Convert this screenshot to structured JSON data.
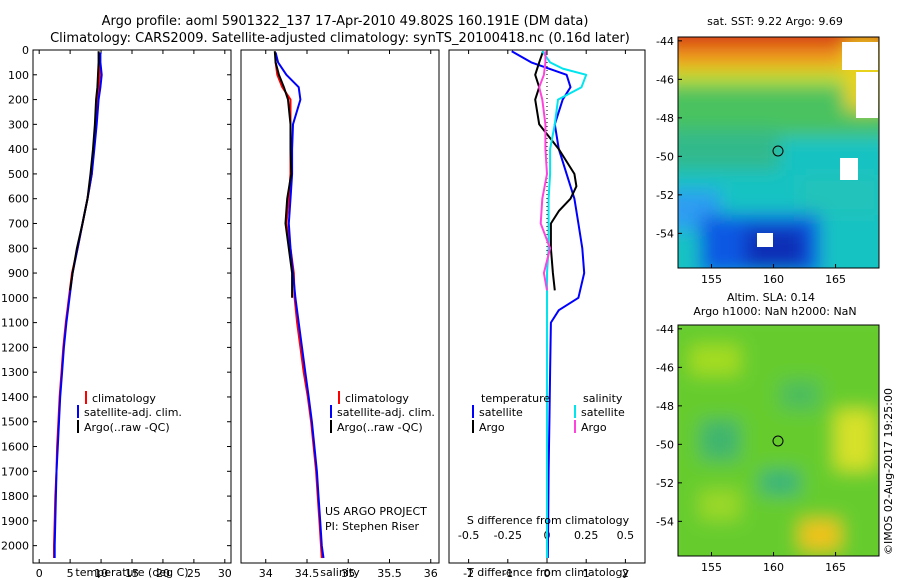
{
  "header": {
    "title_line1": "Argo profile: aoml 5901322_137 17-Apr-2010 49.802S 160.191E (DM data)",
    "title_line2": "Climatology: CARS2009. Satellite-adjusted climatology: synTS_20100418.nc (0.16d later)"
  },
  "colors": {
    "climatology": "#ff0000",
    "satellite": "#0000ff",
    "argo": "#000000",
    "s_satellite": "#00e5ee",
    "s_argo": "#ff44dd"
  },
  "chart_data": [
    {
      "type": "line",
      "name": "temperature-profile",
      "xlabel": "temperature (deg C)",
      "ylabel": "",
      "xlim": [
        -1,
        31
      ],
      "ylim": [
        2070,
        0
      ],
      "xticks": [
        0,
        5,
        10,
        15,
        20,
        25,
        30
      ],
      "yticks": [
        0,
        100,
        200,
        300,
        400,
        500,
        600,
        700,
        800,
        900,
        1000,
        1100,
        1200,
        1300,
        1400,
        1500,
        1600,
        1700,
        1800,
        1900,
        2000
      ],
      "legend": [
        "climatology",
        "satellite-adj. clim.",
        "Argo(..raw -QC)"
      ],
      "legend_position": "center-right",
      "series": [
        {
          "name": "climatology",
          "color": "#ff0000",
          "points": [
            [
              9.7,
              10
            ],
            [
              9.8,
              50
            ],
            [
              9.8,
              100
            ],
            [
              9.6,
              150
            ],
            [
              9.5,
              200
            ],
            [
              9.2,
              300
            ],
            [
              8.8,
              400
            ],
            [
              8.5,
              500
            ],
            [
              7.8,
              600
            ],
            [
              7.0,
              700
            ],
            [
              6.2,
              800
            ],
            [
              5.3,
              900
            ],
            [
              4.8,
              1000
            ],
            [
              4.3,
              1100
            ],
            [
              3.9,
              1200
            ],
            [
              3.6,
              1300
            ],
            [
              3.3,
              1400
            ],
            [
              3.1,
              1500
            ],
            [
              2.9,
              1600
            ],
            [
              2.8,
              1700
            ],
            [
              2.6,
              1800
            ],
            [
              2.5,
              1900
            ],
            [
              2.4,
              2000
            ],
            [
              2.4,
              2050
            ]
          ]
        },
        {
          "name": "satellite-adj. clim.",
          "color": "#0000ff",
          "points": [
            [
              9.9,
              10
            ],
            [
              9.9,
              50
            ],
            [
              10.1,
              100
            ],
            [
              9.9,
              150
            ],
            [
              9.6,
              200
            ],
            [
              9.3,
              300
            ],
            [
              8.9,
              400
            ],
            [
              8.5,
              500
            ],
            [
              7.8,
              600
            ],
            [
              7.0,
              700
            ],
            [
              6.2,
              800
            ],
            [
              5.4,
              900
            ],
            [
              4.9,
              1000
            ],
            [
              4.4,
              1100
            ],
            [
              4.0,
              1200
            ],
            [
              3.7,
              1300
            ],
            [
              3.4,
              1400
            ],
            [
              3.2,
              1500
            ],
            [
              3.0,
              1600
            ],
            [
              2.8,
              1700
            ],
            [
              2.7,
              1800
            ],
            [
              2.6,
              1900
            ],
            [
              2.5,
              2000
            ],
            [
              2.5,
              2050
            ]
          ]
        },
        {
          "name": "Argo(..raw -QC)",
          "color": "#000000",
          "points": [
            [
              9.6,
              5
            ],
            [
              9.6,
              50
            ],
            [
              9.5,
              100
            ],
            [
              9.4,
              150
            ],
            [
              9.2,
              200
            ],
            [
              9.0,
              300
            ],
            [
              8.7,
              400
            ],
            [
              8.3,
              500
            ],
            [
              7.8,
              600
            ],
            [
              7.0,
              700
            ],
            [
              6.1,
              800
            ],
            [
              5.4,
              900
            ],
            [
              5.0,
              970
            ]
          ]
        }
      ]
    },
    {
      "type": "line",
      "name": "salinity-profile",
      "xlabel": "salinity",
      "ylabel": "",
      "xlim": [
        33.7,
        36.1
      ],
      "ylim": [
        2070,
        0
      ],
      "xticks": [
        34,
        34.5,
        35,
        35.5,
        36
      ],
      "xtick_labels": [
        "34",
        "34.5",
        "35",
        "35.5",
        "36"
      ],
      "legend": [
        "climatology",
        "satellite-adj. clim.",
        "Argo(..raw -QC)"
      ],
      "legend_position": "center-right",
      "annotation": [
        "US ARGO PROJECT",
        "PI: Stephen Riser"
      ],
      "series": [
        {
          "name": "climatology",
          "color": "#ff0000",
          "points": [
            [
              34.12,
              10
            ],
            [
              34.12,
              50
            ],
            [
              34.14,
              100
            ],
            [
              34.2,
              150
            ],
            [
              34.3,
              200
            ],
            [
              34.3,
              300
            ],
            [
              34.3,
              400
            ],
            [
              34.3,
              500
            ],
            [
              34.28,
              600
            ],
            [
              34.25,
              700
            ],
            [
              34.3,
              800
            ],
            [
              34.34,
              900
            ],
            [
              34.35,
              1000
            ],
            [
              34.38,
              1100
            ],
            [
              34.42,
              1200
            ],
            [
              34.46,
              1300
            ],
            [
              34.51,
              1400
            ],
            [
              34.55,
              1500
            ],
            [
              34.58,
              1600
            ],
            [
              34.61,
              1700
            ],
            [
              34.63,
              1800
            ],
            [
              34.65,
              1900
            ],
            [
              34.67,
              2000
            ],
            [
              34.68,
              2050
            ]
          ]
        },
        {
          "name": "satellite-adj. clim.",
          "color": "#0000ff",
          "points": [
            [
              34.12,
              10
            ],
            [
              34.15,
              50
            ],
            [
              34.25,
              100
            ],
            [
              34.4,
              150
            ],
            [
              34.42,
              200
            ],
            [
              34.33,
              300
            ],
            [
              34.32,
              400
            ],
            [
              34.32,
              500
            ],
            [
              34.3,
              600
            ],
            [
              34.28,
              700
            ],
            [
              34.3,
              800
            ],
            [
              34.33,
              900
            ],
            [
              34.36,
              1000
            ],
            [
              34.4,
              1100
            ],
            [
              34.44,
              1200
            ],
            [
              34.48,
              1300
            ],
            [
              34.52,
              1400
            ],
            [
              34.56,
              1500
            ],
            [
              34.59,
              1600
            ],
            [
              34.62,
              1700
            ],
            [
              34.64,
              1800
            ],
            [
              34.66,
              1900
            ],
            [
              34.68,
              2000
            ],
            [
              34.7,
              2050
            ]
          ]
        },
        {
          "name": "Argo(..raw -QC)",
          "color": "#000000",
          "points": [
            [
              34.11,
              5
            ],
            [
              34.12,
              50
            ],
            [
              34.16,
              100
            ],
            [
              34.22,
              150
            ],
            [
              34.27,
              200
            ],
            [
              34.3,
              300
            ],
            [
              34.3,
              400
            ],
            [
              34.31,
              500
            ],
            [
              34.26,
              600
            ],
            [
              34.24,
              700
            ],
            [
              34.28,
              800
            ],
            [
              34.32,
              900
            ],
            [
              34.32,
              1000
            ]
          ]
        }
      ]
    },
    {
      "type": "line",
      "name": "difference-profile",
      "xlabel": "T difference from climatology",
      "xlabel_top": "S difference from climatology",
      "ylabel": "",
      "xlim": [
        -2.5,
        2.5
      ],
      "ylim": [
        2070,
        0
      ],
      "xticks": [
        -2,
        -1,
        0,
        1,
        2
      ],
      "s_xticks": [
        -0.5,
        -0.25,
        0,
        0.25,
        0.5
      ],
      "s_xtick_labels": [
        "-0.5",
        "-0.25",
        "0",
        "0.25",
        "0.5"
      ],
      "legend": {
        "temperature_heading": "temperature",
        "salinity_heading": "salinity",
        "t_satellite": "satellite",
        "t_argo": "Argo",
        "s_satellite": "satellite",
        "s_argo": "Argo"
      },
      "legend_position": "center",
      "series": [
        {
          "name": "temperature satellite",
          "color": "#0000ff",
          "points": [
            [
              -0.9,
              5
            ],
            [
              -0.4,
              50
            ],
            [
              0.5,
              100
            ],
            [
              0.6,
              150
            ],
            [
              0.4,
              200
            ],
            [
              0.2,
              300
            ],
            [
              0.3,
              400
            ],
            [
              0.5,
              500
            ],
            [
              0.7,
              600
            ],
            [
              0.8,
              700
            ],
            [
              0.9,
              800
            ],
            [
              0.95,
              900
            ],
            [
              0.8,
              1000
            ],
            [
              0.3,
              1050
            ],
            [
              0.1,
              1100
            ],
            [
              0.08,
              1300
            ],
            [
              0.06,
              1500
            ],
            [
              0.04,
              1700
            ],
            [
              0.03,
              1900
            ],
            [
              0.02,
              2050
            ]
          ]
        },
        {
          "name": "temperature Argo",
          "color": "#000000",
          "points": [
            [
              -0.1,
              5
            ],
            [
              -0.2,
              50
            ],
            [
              -0.3,
              100
            ],
            [
              -0.2,
              150
            ],
            [
              -0.3,
              200
            ],
            [
              -0.2,
              300
            ],
            [
              0.3,
              400
            ],
            [
              0.5,
              450
            ],
            [
              0.7,
              500
            ],
            [
              0.75,
              550
            ],
            [
              0.6,
              600
            ],
            [
              0.3,
              650
            ],
            [
              0.1,
              700
            ],
            [
              0.1,
              800
            ],
            [
              0.15,
              900
            ],
            [
              0.2,
              970
            ]
          ]
        },
        {
          "name": "salinity satellite",
          "color": "#00e5ee",
          "points": [
            [
              -0.03,
              5
            ],
            [
              0.02,
              50
            ],
            [
              0.1,
              75
            ],
            [
              0.25,
              100
            ],
            [
              0.22,
              150
            ],
            [
              0.07,
              200
            ],
            [
              0.05,
              300
            ],
            [
              0.02,
              400
            ],
            [
              0.02,
              500
            ],
            [
              0.01,
              600
            ],
            [
              0.01,
              700
            ],
            [
              0.01,
              800
            ],
            [
              0.0,
              900
            ],
            [
              0.0,
              1000
            ],
            [
              0.0,
              1200
            ],
            [
              0.0,
              1400
            ],
            [
              0.0,
              1600
            ],
            [
              0.0,
              1800
            ],
            [
              0.0,
              2000
            ],
            [
              0.0,
              2050
            ]
          ]
        },
        {
          "name": "salinity Argo",
          "color": "#ff44dd",
          "points": [
            [
              -0.01,
              5
            ],
            [
              -0.01,
              50
            ],
            [
              -0.02,
              100
            ],
            [
              -0.05,
              150
            ],
            [
              -0.03,
              200
            ],
            [
              -0.01,
              300
            ],
            [
              -0.01,
              400
            ],
            [
              0.0,
              500
            ],
            [
              -0.03,
              600
            ],
            [
              -0.04,
              700
            ],
            [
              0.02,
              800
            ],
            [
              -0.02,
              900
            ],
            [
              0.0,
              970
            ]
          ]
        }
      ]
    },
    {
      "type": "heatmap",
      "name": "sst-map",
      "title": "sat. SST: 9.22 Argo: 9.69",
      "xlim": [
        152.3,
        168.5
      ],
      "ylim": [
        -55.8,
        -43.8
      ],
      "xticks": [
        155,
        160,
        165
      ],
      "yticks": [
        -44,
        -46,
        -48,
        -50,
        -52,
        -54
      ],
      "marker": {
        "lon": 160.191,
        "lat": -49.802
      }
    },
    {
      "type": "heatmap",
      "name": "sla-map",
      "title_line1": "Altim. SLA: 0.14",
      "title_line2": "Argo h1000: NaN h2000: NaN",
      "xlim": [
        152.3,
        168.5
      ],
      "ylim": [
        -55.8,
        -43.8
      ],
      "xticks": [
        155,
        160,
        165
      ],
      "yticks": [
        -44,
        -46,
        -48,
        -50,
        -52,
        -54
      ],
      "marker": {
        "lon": 160.191,
        "lat": -49.802
      }
    }
  ],
  "footer": {
    "credit": "©IMOS 02-Aug-2017 19:25:00"
  }
}
